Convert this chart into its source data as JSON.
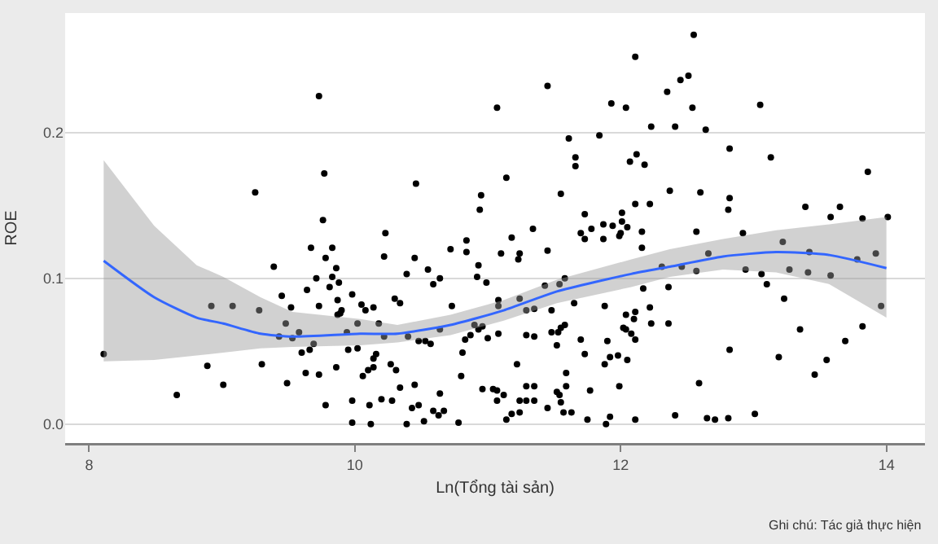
{
  "chart_data": {
    "type": "scatter",
    "xlabel": "Ln(Tổng tài sản)",
    "ylabel": "ROE",
    "annotations": [
      "Ghi chú: Tác giả thực hiện"
    ],
    "xlim": [
      7.82,
      14.29
    ],
    "ylim": [
      -0.013,
      0.282
    ],
    "xticks": [
      8,
      10,
      12,
      14
    ],
    "yticks": [
      {
        "value": 0,
        "label": "0.0"
      },
      {
        "value": 0.1,
        "label": "0.1"
      },
      {
        "value": 0.2,
        "label": "0.2"
      }
    ],
    "grid": "y",
    "legend": false,
    "series": [
      {
        "color": "#000000",
        "marker": "circle",
        "x": [
          9.73,
          9.77,
          9.25,
          9.76,
          8.11,
          8.66,
          8.89,
          9.01,
          8.92,
          9.08,
          9.28,
          9.3,
          9.39,
          9.45,
          9.48,
          9.49,
          9.43,
          9.53,
          9.52,
          9.58,
          9.6,
          9.64,
          9.63,
          9.67,
          9.66,
          9.69,
          9.71,
          9.73,
          9.73,
          9.78,
          9.81,
          9.83,
          9.83,
          9.86,
          9.86,
          9.87,
          9.88,
          9.87,
          9.89,
          9.9,
          9.94,
          9.95,
          9.98,
          9.98,
          9.78,
          9.98,
          10.02,
          10.02,
          11.45,
          11.07,
          11.93,
          12.04,
          11.61,
          11.84,
          11.66,
          11.66,
          12.07,
          10.46,
          11.14,
          10.95,
          10.94,
          11.55,
          11.73,
          12.01,
          12.01,
          11.87,
          11.94,
          11.34,
          11.78,
          10.23,
          10.22,
          10.45,
          10.84,
          10.84,
          10.72,
          11.18,
          11.1,
          11.24,
          11.23,
          11.45,
          10.55,
          10.39,
          10.64,
          10.59,
          10.93,
          10.92,
          10.99,
          10.3,
          10.34,
          10.05,
          10.08,
          10.14,
          10.73,
          11.08,
          11.08,
          11.24,
          11.29,
          11.35,
          11.43,
          11.54,
          11.58,
          11.48,
          11.65,
          10.18,
          10.4,
          10.22,
          10.48,
          10.53,
          10.57,
          10.64,
          10.83,
          10.87,
          10.9,
          10.93,
          10.96,
          11.0,
          11.08,
          11.29,
          11.35,
          11.48,
          11.53,
          11.55,
          11.58,
          11.52,
          11.7,
          11.9,
          12.04,
          12.04,
          11.88,
          10.16,
          10.14,
          10.14,
          10.1,
          10.27,
          10.31,
          10.06,
          10.34,
          10.45,
          10.11,
          10.2,
          10.28,
          10.43,
          10.48,
          10.64,
          10.59,
          10.67,
          10.8,
          10.81,
          10.96,
          11.04,
          11.07,
          11.12,
          11.07,
          11.22,
          11.24,
          11.29,
          11.35,
          11.29,
          11.35,
          11.45,
          11.52,
          11.54,
          11.55,
          11.57,
          11.59,
          11.63,
          11.59,
          11.73,
          11.77,
          11.88,
          11.92,
          11.98,
          11.99,
          11.92,
          11.89,
          11.75,
          10.12,
          10.39,
          10.52,
          10.63,
          10.78,
          11.14,
          11.18,
          11.24,
          11.7,
          11.73,
          11.87,
          11.99,
          12.55,
          12.11,
          12.35,
          12.45,
          12.51,
          12.54,
          12.23,
          12.41,
          12.64,
          13.05,
          12.12,
          12.18,
          12.82,
          13.13,
          13.86,
          12.37,
          12.6,
          12.82,
          12.81,
          12.11,
          12.22,
          12.05,
          13.39,
          13.65,
          13.58,
          13.82,
          14.01,
          12.0,
          12.16,
          12.16,
          12.57,
          12.92,
          13.22,
          12.66,
          12.31,
          12.46,
          12.57,
          12.94,
          13.06,
          13.27,
          13.42,
          13.41,
          13.58,
          13.78,
          13.92,
          13.1,
          12.17,
          12.36,
          13.23,
          13.96,
          12.22,
          12.11,
          12.1,
          12.23,
          12.36,
          12.02,
          12.08,
          12.11,
          13.35,
          13.82,
          13.69,
          12.82,
          12.05,
          13.19,
          13.55,
          13.46,
          12.59,
          12.41,
          12.11,
          12.65,
          12.71,
          12.81,
          13.01
        ],
        "values": [
          0.225,
          0.172,
          0.159,
          0.14,
          0.048,
          0.02,
          0.04,
          0.027,
          0.081,
          0.081,
          0.078,
          0.041,
          0.108,
          0.088,
          0.069,
          0.028,
          0.06,
          0.059,
          0.08,
          0.063,
          0.049,
          0.092,
          0.035,
          0.121,
          0.051,
          0.055,
          0.1,
          0.081,
          0.034,
          0.114,
          0.094,
          0.101,
          0.121,
          0.107,
          0.039,
          0.085,
          0.097,
          0.075,
          0.076,
          0.078,
          0.063,
          0.051,
          0.089,
          0.016,
          0.013,
          0.001,
          0.069,
          0.052,
          0.232,
          0.217,
          0.22,
          0.217,
          0.196,
          0.198,
          0.183,
          0.177,
          0.18,
          0.165,
          0.169,
          0.157,
          0.147,
          0.158,
          0.144,
          0.145,
          0.139,
          0.137,
          0.136,
          0.134,
          0.134,
          0.131,
          0.115,
          0.114,
          0.126,
          0.118,
          0.12,
          0.128,
          0.117,
          0.117,
          0.113,
          0.119,
          0.106,
          0.103,
          0.1,
          0.096,
          0.109,
          0.101,
          0.097,
          0.086,
          0.083,
          0.082,
          0.078,
          0.08,
          0.081,
          0.085,
          0.081,
          0.086,
          0.078,
          0.079,
          0.095,
          0.096,
          0.1,
          0.078,
          0.083,
          0.069,
          0.06,
          0.06,
          0.057,
          0.057,
          0.055,
          0.065,
          0.058,
          0.061,
          0.068,
          0.065,
          0.067,
          0.059,
          0.062,
          0.061,
          0.06,
          0.063,
          0.063,
          0.066,
          0.068,
          0.054,
          0.058,
          0.057,
          0.065,
          0.075,
          0.081,
          0.048,
          0.045,
          0.039,
          0.037,
          0.041,
          0.037,
          0.033,
          0.025,
          0.027,
          0.013,
          0.017,
          0.016,
          0.011,
          0.013,
          0.021,
          0.009,
          0.009,
          0.033,
          0.049,
          0.024,
          0.024,
          0.023,
          0.02,
          0.016,
          0.041,
          0.016,
          0.026,
          0.026,
          0.016,
          0.016,
          0.011,
          0.022,
          0.02,
          0.015,
          0.008,
          0.026,
          0.008,
          0.035,
          0.048,
          0.023,
          0.041,
          0.046,
          0.047,
          0.026,
          0.005,
          0.0,
          0.003,
          0.0,
          0.0,
          0.002,
          0.006,
          0.001,
          0.003,
          0.007,
          0.008,
          0.131,
          0.127,
          0.127,
          0.129,
          0.267,
          0.252,
          0.228,
          0.236,
          0.239,
          0.217,
          0.204,
          0.204,
          0.202,
          0.219,
          0.185,
          0.178,
          0.189,
          0.183,
          0.173,
          0.16,
          0.159,
          0.155,
          0.147,
          0.151,
          0.151,
          0.135,
          0.149,
          0.149,
          0.142,
          0.141,
          0.142,
          0.131,
          0.132,
          0.121,
          0.132,
          0.131,
          0.125,
          0.117,
          0.108,
          0.108,
          0.105,
          0.106,
          0.103,
          0.106,
          0.118,
          0.104,
          0.102,
          0.113,
          0.117,
          0.096,
          0.093,
          0.094,
          0.086,
          0.081,
          0.08,
          0.077,
          0.072,
          0.069,
          0.069,
          0.066,
          0.062,
          0.058,
          0.065,
          0.067,
          0.057,
          0.051,
          0.044,
          0.046,
          0.044,
          0.034,
          0.028,
          0.006,
          0.003,
          0.004,
          0.003,
          0.004,
          0.007
        ]
      },
      {
        "type": "line",
        "color": "#3366ff",
        "line_style": "solid",
        "marker": "none",
        "x": [
          8.11,
          8.49,
          8.81,
          9.01,
          9.29,
          9.53,
          10.04,
          10.32,
          10.72,
          11.12,
          11.52,
          12.08,
          12.37,
          12.77,
          13.17,
          13.57,
          14.0
        ],
        "values": [
          0.112,
          0.087,
          0.073,
          0.069,
          0.062,
          0.06,
          0.062,
          0.062,
          0.068,
          0.078,
          0.091,
          0.103,
          0.108,
          0.115,
          0.118,
          0.116,
          0.107
        ],
        "upper": [
          0.181,
          0.136,
          0.109,
          0.101,
          0.087,
          0.077,
          0.072,
          0.068,
          0.075,
          0.085,
          0.099,
          0.113,
          0.12,
          0.127,
          0.133,
          0.137,
          0.142
        ],
        "lower": [
          0.043,
          0.044,
          0.047,
          0.049,
          0.052,
          0.053,
          0.054,
          0.056,
          0.061,
          0.071,
          0.083,
          0.094,
          0.101,
          0.106,
          0.104,
          0.096,
          0.073
        ]
      }
    ]
  }
}
